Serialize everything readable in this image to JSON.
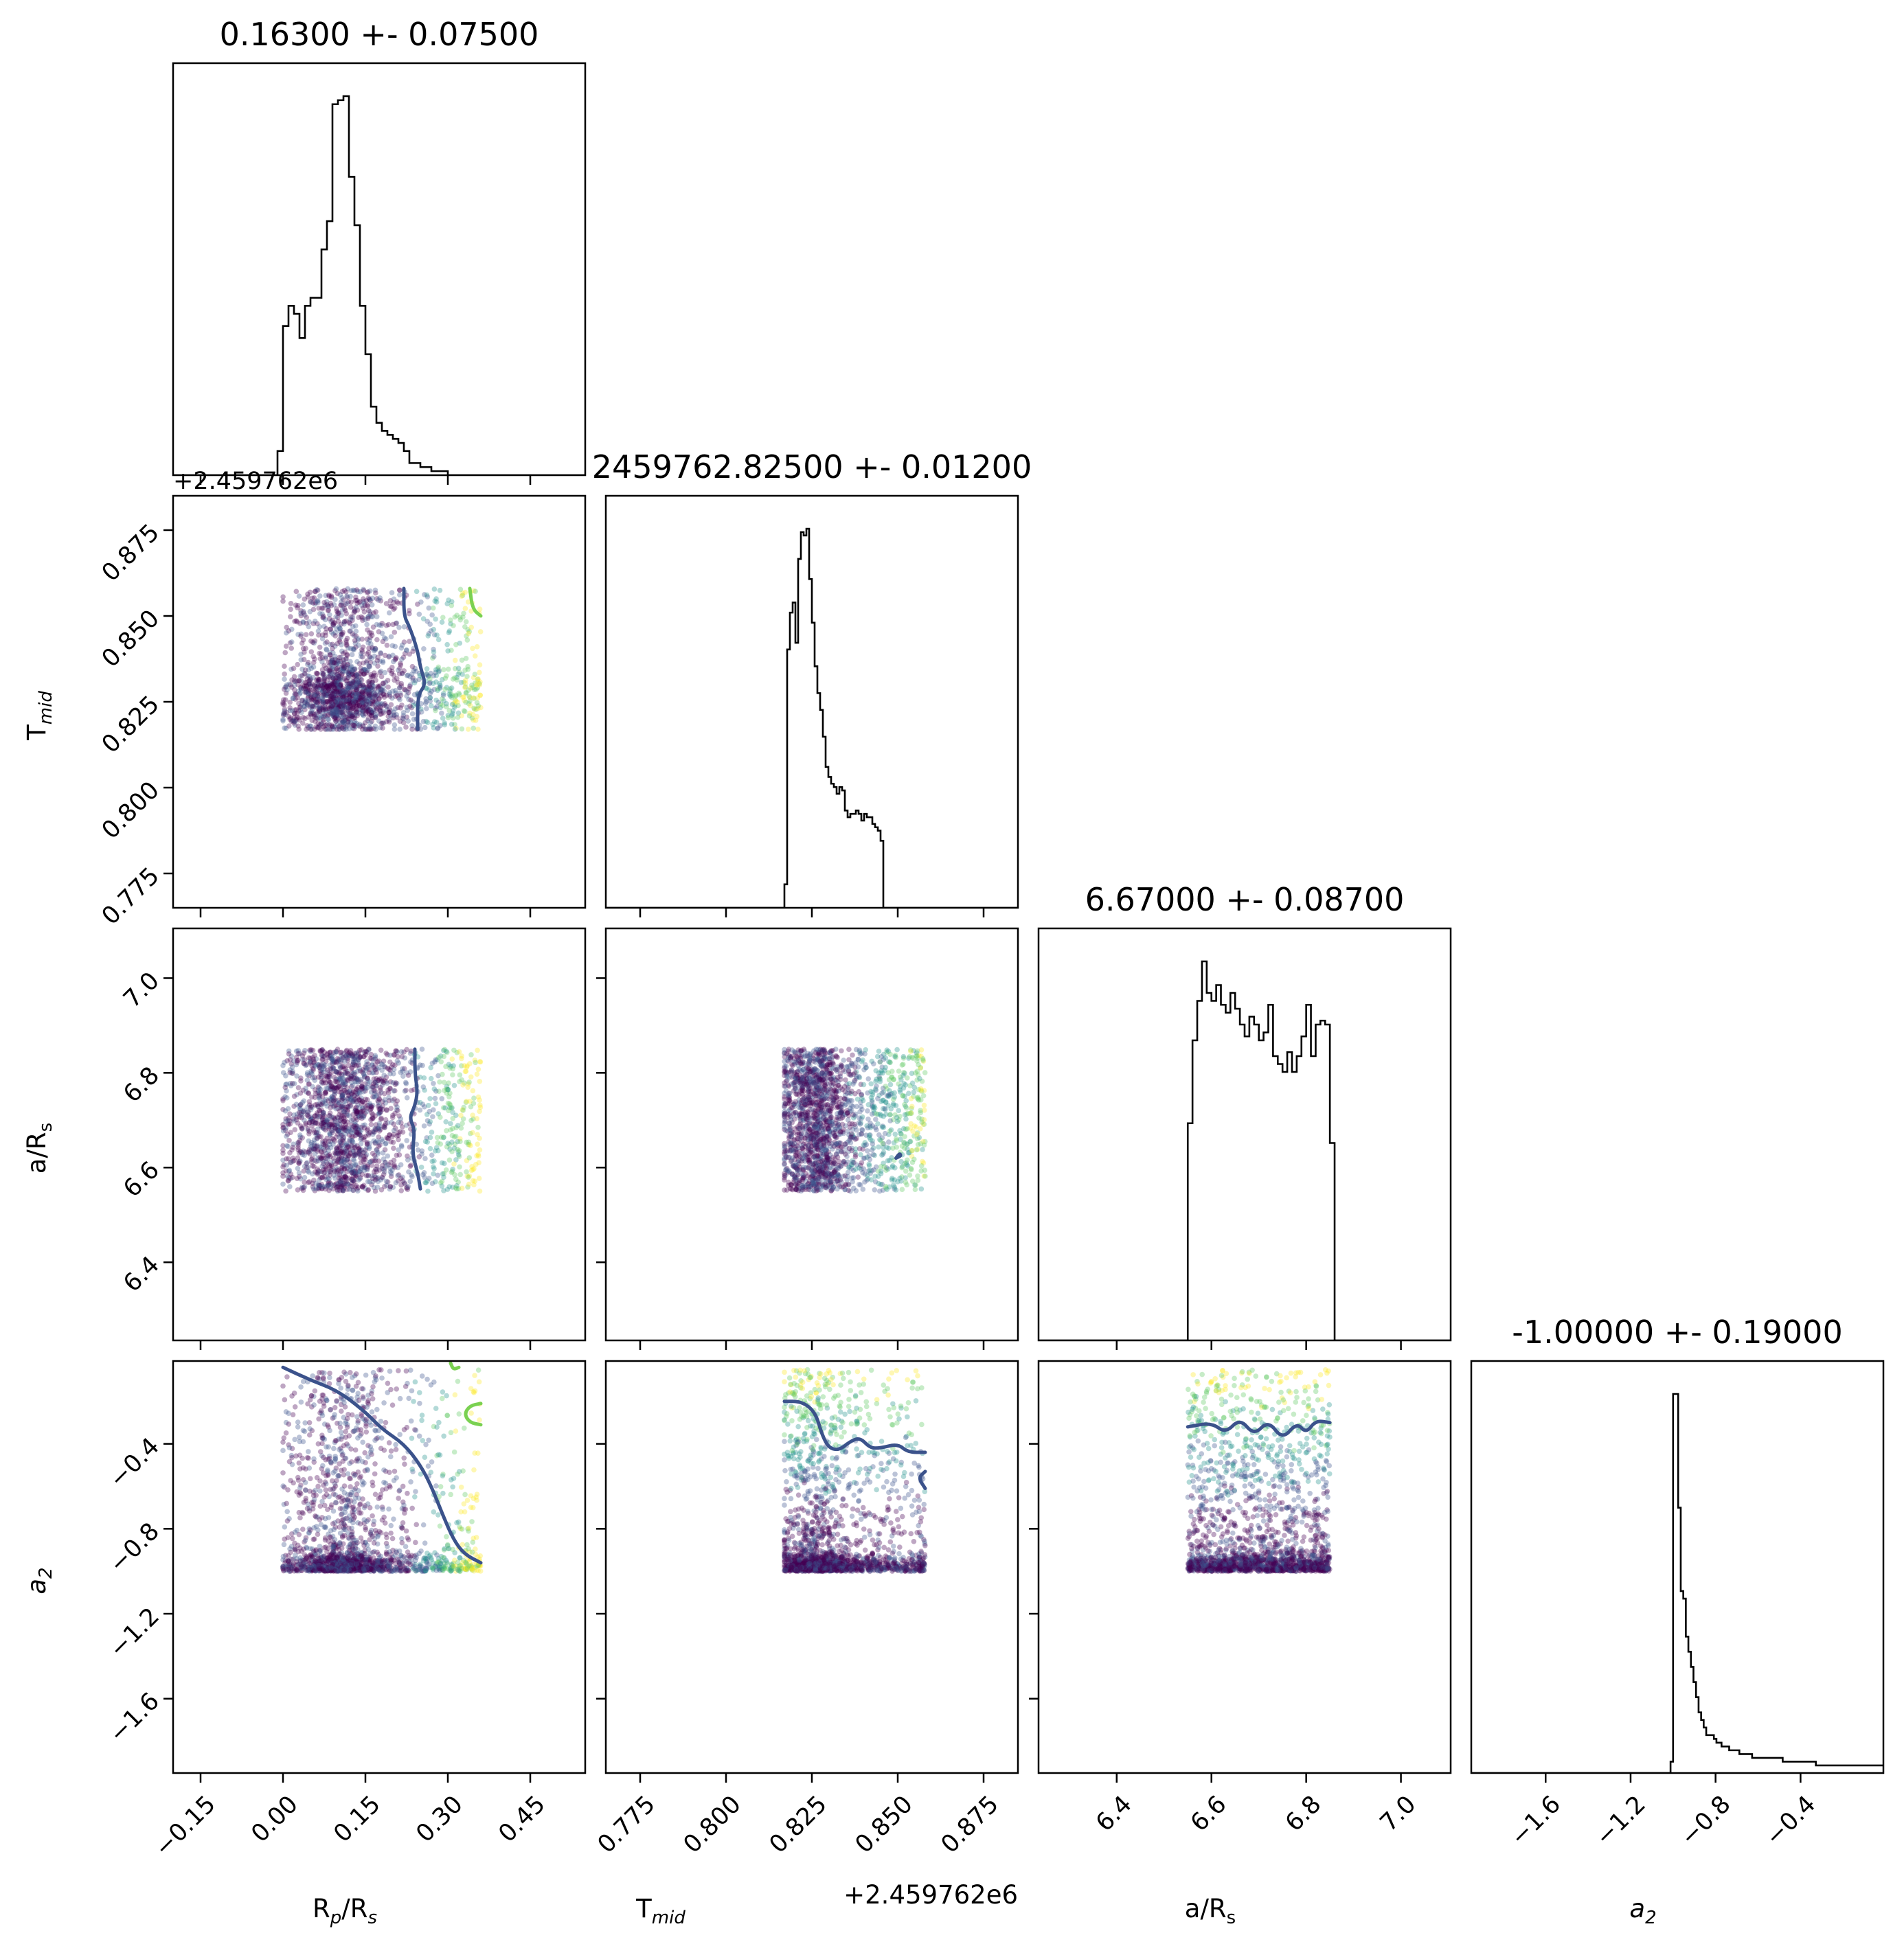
{
  "chart_data": {
    "type": "scatter",
    "layout": "corner-plot",
    "parameters": [
      {
        "key": "rprs",
        "label": "R",
        "label_sub": "p",
        "label_tail": "/R",
        "label_tail_sub": "s",
        "title": "0.16300 +- 0.07500",
        "lim": [
          -0.2,
          0.55
        ],
        "ticks": [
          -0.15,
          0.0,
          0.15,
          0.3,
          0.45
        ],
        "tick_labels": [
          "−0.15",
          "0.00",
          "0.15",
          "0.30",
          "0.45"
        ]
      },
      {
        "key": "tmid",
        "label": "T",
        "label_sub": "mid",
        "label_tail": "",
        "label_tail_sub": "",
        "title": "2459762.82500 +- 0.01200",
        "offset_text": "+2.459762e6",
        "lim": [
          0.765,
          0.885
        ],
        "ticks": [
          0.775,
          0.8,
          0.825,
          0.85,
          0.875
        ],
        "tick_labels": [
          "0.775",
          "0.800",
          "0.825",
          "0.850",
          "0.875"
        ]
      },
      {
        "key": "ars",
        "label": "a/R",
        "label_sub": "s",
        "label_tail": "",
        "label_tail_sub": "",
        "title": "6.67000 +- 0.08700",
        "lim": [
          6.235,
          7.105
        ],
        "ticks": [
          6.4,
          6.6,
          6.8,
          7.0
        ],
        "tick_labels": [
          "6.4",
          "6.6",
          "6.8",
          "7.0"
        ]
      },
      {
        "key": "a2",
        "label": "a",
        "label_sub": "2",
        "label_tail": "",
        "label_tail_sub": "",
        "title": "-1.00000 +- 0.19000",
        "lim": [
          -1.95,
          -0.01
        ],
        "ticks": [
          -1.6,
          -1.2,
          -0.8,
          -0.4
        ],
        "tick_labels": [
          "−1.6",
          "−1.2",
          "−0.8",
          "−0.4"
        ]
      }
    ],
    "histograms": [
      {
        "param": "rprs",
        "bin_edges": [
          -0.01,
          0.0,
          0.01,
          0.02,
          0.03,
          0.04,
          0.05,
          0.06,
          0.07,
          0.08,
          0.09,
          0.1,
          0.11,
          0.12,
          0.13,
          0.14,
          0.15,
          0.16,
          0.17,
          0.18,
          0.19,
          0.2,
          0.21,
          0.22,
          0.23,
          0.24,
          0.25,
          0.26,
          0.27,
          0.28,
          0.29,
          0.3,
          0.31,
          0.32,
          0.33,
          0.34,
          0.35,
          0.36,
          0.37
        ],
        "counts": [
          6,
          37,
          42,
          40,
          34,
          42,
          44,
          44,
          56,
          63,
          92,
          93,
          94,
          74,
          62,
          42,
          30,
          17,
          13,
          11,
          10,
          9,
          8,
          6,
          3,
          3,
          2,
          2,
          1,
          1,
          1,
          0,
          0,
          0,
          0,
          0,
          0,
          0
        ]
      },
      {
        "param": "tmid",
        "bin_edges": [
          0.817,
          0.8178,
          0.8186,
          0.8194,
          0.8202,
          0.821,
          0.8218,
          0.8226,
          0.8234,
          0.8242,
          0.825,
          0.8258,
          0.8266,
          0.8274,
          0.8282,
          0.829,
          0.8298,
          0.8306,
          0.8314,
          0.8322,
          0.833,
          0.8338,
          0.8346,
          0.8354,
          0.8362,
          0.837,
          0.8378,
          0.8386,
          0.8394,
          0.8402,
          0.841,
          0.8418,
          0.8426,
          0.8434,
          0.8442,
          0.845,
          0.8458,
          0.8466,
          0.8474,
          0.8482,
          0.849,
          0.8498,
          0.8506,
          0.8514,
          0.8522,
          0.853,
          0.8538,
          0.8546,
          0.8554,
          0.8562,
          0.857,
          0.8578
        ],
        "counts": [
          7,
          77,
          88,
          91,
          79,
          104,
          112,
          111,
          113,
          98,
          85,
          72,
          64,
          59,
          51,
          42,
          39,
          37,
          36,
          34,
          36,
          35,
          29,
          27,
          28,
          28,
          29,
          28,
          26,
          28,
          27,
          27,
          25,
          24,
          23,
          20,
          0,
          0,
          0,
          0,
          0,
          0,
          0,
          0,
          0,
          0,
          0,
          0,
          0,
          0,
          0
        ]
      },
      {
        "param": "ars",
        "bin_edges": [
          6.55,
          6.56,
          6.57,
          6.58,
          6.59,
          6.6,
          6.61,
          6.62,
          6.63,
          6.64,
          6.65,
          6.66,
          6.67,
          6.68,
          6.69,
          6.7,
          6.71,
          6.72,
          6.73,
          6.74,
          6.75,
          6.76,
          6.77,
          6.78,
          6.79,
          6.8,
          6.81,
          6.82,
          6.83,
          6.84,
          6.85,
          6.86
        ],
        "counts": [
          55,
          76,
          86,
          96,
          88,
          86,
          90,
          85,
          83,
          88,
          84,
          80,
          77,
          82,
          80,
          76,
          78,
          85,
          72,
          70,
          68,
          73,
          68,
          72,
          77,
          85,
          72,
          80,
          81,
          80,
          50
        ]
      },
      {
        "param": "a2",
        "bin_edges": [
          -1.012,
          -1.0,
          -0.988,
          -0.976,
          -0.964,
          -0.952,
          -0.94,
          -0.928,
          -0.916,
          -0.904,
          -0.892,
          -0.88,
          -0.868,
          -0.856,
          -0.844,
          -0.832,
          -0.82,
          -0.808,
          -0.796,
          -0.784,
          -0.772,
          -0.76,
          -0.748,
          -0.736,
          -0.724,
          -0.712,
          -0.7,
          -0.688,
          -0.676,
          -0.664,
          -0.652,
          -0.64,
          -0.628,
          -0.616,
          -0.604,
          -0.592,
          -0.58,
          -0.568,
          -0.556,
          -0.544,
          -0.532,
          -0.52,
          -0.508,
          -0.496,
          -0.484,
          -0.472,
          -0.46,
          -0.448,
          -0.436,
          -0.424,
          -0.412,
          -0.4,
          -0.388,
          -0.376,
          -0.364,
          -0.352,
          -0.34,
          -0.328,
          -0.316,
          -0.304,
          -0.292,
          -0.28,
          -0.268,
          -0.256,
          -0.244,
          -0.232,
          -0.22,
          -0.208,
          -0.196,
          -0.184,
          -0.172,
          -0.16,
          -0.148,
          -0.136,
          -0.124,
          -0.112,
          -0.1,
          -0.088,
          -0.076,
          -0.064,
          -0.052,
          -0.04,
          -0.028,
          -0.016,
          -0.004
        ],
        "counts": [
          3,
          100,
          100,
          70,
          48,
          46,
          36,
          32,
          28,
          24,
          20,
          16,
          14,
          12,
          10,
          10,
          10,
          9,
          8,
          8,
          7,
          7,
          7,
          6,
          6,
          6,
          6,
          5,
          5,
          5,
          5,
          5,
          4,
          4,
          4,
          4,
          4,
          4,
          4,
          4,
          4,
          4,
          4,
          4,
          3,
          3,
          3,
          3,
          3,
          3,
          3,
          3,
          3,
          3,
          3,
          3,
          3,
          2,
          2,
          2,
          2,
          2,
          2,
          2,
          2,
          2,
          2,
          2,
          2,
          2,
          2,
          2,
          2,
          2,
          2,
          2,
          2,
          2,
          2,
          2,
          2,
          2,
          2,
          2
        ]
      }
    ],
    "scatter_panels": [
      {
        "x": "rprs",
        "y": "tmid",
        "x_range": [
          0.0,
          0.36
        ],
        "y_range": [
          0.817,
          0.858
        ]
      },
      {
        "x": "rprs",
        "y": "ars",
        "x_range": [
          0.0,
          0.36
        ],
        "y_range": [
          6.55,
          6.85
        ]
      },
      {
        "x": "tmid",
        "y": "ars",
        "x_range": [
          0.817,
          0.858
        ],
        "y_range": [
          6.55,
          6.85
        ]
      },
      {
        "x": "rprs",
        "y": "a2",
        "x_range": [
          0.0,
          0.36
        ],
        "y_range": [
          -1.0,
          -0.05
        ]
      },
      {
        "x": "tmid",
        "y": "a2",
        "x_range": [
          0.817,
          0.858
        ],
        "y_range": [
          -1.0,
          -0.05
        ]
      },
      {
        "x": "ars",
        "y": "a2",
        "x_range": [
          6.55,
          6.85
        ],
        "y_range": [
          -1.0,
          -0.05
        ]
      }
    ],
    "contours": [
      {
        "panel": "rprs-tmid",
        "color": "#3b528b",
        "points": [
          [
            0.22,
            0.858
          ],
          [
            0.22,
            0.85
          ],
          [
            0.23,
            0.847
          ],
          [
            0.245,
            0.84
          ],
          [
            0.25,
            0.835
          ],
          [
            0.26,
            0.83
          ],
          [
            0.245,
            0.827
          ],
          [
            0.245,
            0.817
          ]
        ]
      },
      {
        "panel": "rprs-tmid",
        "color": "#7ad151",
        "points": [
          [
            0.34,
            0.858
          ],
          [
            0.345,
            0.852
          ],
          [
            0.36,
            0.85
          ]
        ]
      },
      {
        "panel": "rprs-ars",
        "color": "#3b528b",
        "points": [
          [
            0.24,
            6.85
          ],
          [
            0.24,
            6.8
          ],
          [
            0.245,
            6.76
          ],
          [
            0.24,
            6.73
          ],
          [
            0.23,
            6.705
          ],
          [
            0.24,
            6.68
          ],
          [
            0.235,
            6.63
          ],
          [
            0.245,
            6.59
          ],
          [
            0.25,
            6.555
          ]
        ]
      },
      {
        "panel": "tmid-ars",
        "color": "#3b528b",
        "points": [
          [
            0.8495,
            6.62
          ],
          [
            0.8505,
            6.63
          ],
          [
            0.851,
            6.625
          ],
          [
            0.8495,
            6.62
          ]
        ]
      },
      {
        "panel": "rprs-a2",
        "color": "#3b528b",
        "points": [
          [
            0.0,
            -0.04
          ],
          [
            0.05,
            -0.1
          ],
          [
            0.1,
            -0.15
          ],
          [
            0.15,
            -0.25
          ],
          [
            0.18,
            -0.33
          ],
          [
            0.22,
            -0.4
          ],
          [
            0.25,
            -0.5
          ],
          [
            0.27,
            -0.6
          ],
          [
            0.29,
            -0.73
          ],
          [
            0.31,
            -0.85
          ],
          [
            0.33,
            -0.92
          ],
          [
            0.36,
            -0.96
          ]
        ]
      },
      {
        "panel": "rprs-a2",
        "color": "#7ad151",
        "points": [
          [
            0.36,
            -0.21
          ],
          [
            0.34,
            -0.22
          ],
          [
            0.33,
            -0.26
          ],
          [
            0.34,
            -0.3
          ],
          [
            0.36,
            -0.31
          ]
        ]
      },
      {
        "panel": "rprs-a2",
        "color": "#7ad151",
        "points": [
          [
            0.305,
            -0.02
          ],
          [
            0.31,
            -0.05
          ],
          [
            0.32,
            -0.04
          ]
        ]
      },
      {
        "panel": "tmid-a2",
        "color": "#3b528b",
        "points": [
          [
            0.817,
            -0.2
          ],
          [
            0.822,
            -0.2
          ],
          [
            0.826,
            -0.25
          ],
          [
            0.828,
            -0.36
          ],
          [
            0.83,
            -0.42
          ],
          [
            0.833,
            -0.43
          ],
          [
            0.836,
            -0.39
          ],
          [
            0.839,
            -0.37
          ],
          [
            0.842,
            -0.42
          ],
          [
            0.845,
            -0.42
          ],
          [
            0.85,
            -0.4
          ],
          [
            0.853,
            -0.44
          ],
          [
            0.858,
            -0.44
          ]
        ]
      },
      {
        "panel": "tmid-a2",
        "color": "#3b528b",
        "points": [
          [
            0.858,
            -0.53
          ],
          [
            0.856,
            -0.56
          ],
          [
            0.858,
            -0.61
          ]
        ]
      },
      {
        "panel": "ars-a2",
        "color": "#3b528b",
        "points": [
          [
            6.55,
            -0.32
          ],
          [
            6.6,
            -0.3
          ],
          [
            6.63,
            -0.35
          ],
          [
            6.66,
            -0.28
          ],
          [
            6.69,
            -0.36
          ],
          [
            6.72,
            -0.29
          ],
          [
            6.75,
            -0.38
          ],
          [
            6.78,
            -0.3
          ],
          [
            6.8,
            -0.35
          ],
          [
            6.82,
            -0.29
          ],
          [
            6.85,
            -0.3
          ]
        ]
      }
    ],
    "colormap": [
      "#440154",
      "#3b528b",
      "#21918c",
      "#5ec962",
      "#fde725"
    ]
  }
}
